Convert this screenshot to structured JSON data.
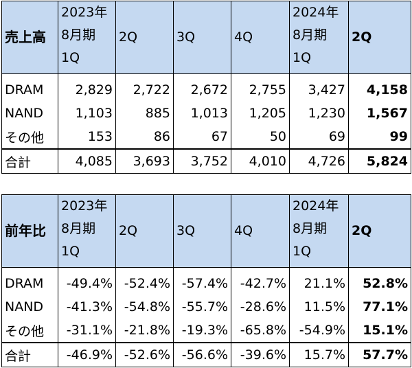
{
  "sales": {
    "corner": "売上高",
    "headers": [
      {
        "l1": "2023年",
        "l2": "8月期",
        "l3": "1Q"
      },
      {
        "l1": "",
        "l2": "2Q",
        "l3": ""
      },
      {
        "l1": "",
        "l2": "3Q",
        "l3": ""
      },
      {
        "l1": "",
        "l2": "4Q",
        "l3": ""
      },
      {
        "l1": "2024年",
        "l2": "8月期",
        "l3": "1Q"
      },
      {
        "l1": "",
        "l2": "2Q",
        "l3": ""
      }
    ],
    "rows": [
      {
        "label": "DRAM",
        "values": [
          "2,829",
          "2,722",
          "2,672",
          "2,755",
          "3,427",
          "4,158"
        ]
      },
      {
        "label": "NAND",
        "values": [
          "1,103",
          "885",
          "1,013",
          "1,205",
          "1,230",
          "1,567"
        ]
      },
      {
        "label": "その他",
        "values": [
          "153",
          "86",
          "67",
          "50",
          "69",
          "99"
        ]
      },
      {
        "label": "合計",
        "values": [
          "4,085",
          "3,693",
          "3,752",
          "4,010",
          "4,726",
          "5,824"
        ]
      }
    ]
  },
  "yoy": {
    "corner": "前年比",
    "headers": [
      {
        "l1": "2023年",
        "l2": "8月期",
        "l3": "1Q"
      },
      {
        "l1": "",
        "l2": "2Q",
        "l3": ""
      },
      {
        "l1": "",
        "l2": "3Q",
        "l3": ""
      },
      {
        "l1": "",
        "l2": "4Q",
        "l3": ""
      },
      {
        "l1": "2024年",
        "l2": "8月期",
        "l3": "1Q"
      },
      {
        "l1": "",
        "l2": "2Q",
        "l3": ""
      }
    ],
    "rows": [
      {
        "label": "DRAM",
        "values": [
          "-49.4%",
          "-52.4%",
          "-57.4%",
          "-42.7%",
          "21.1%",
          "52.8%"
        ]
      },
      {
        "label": "NAND",
        "values": [
          "-41.3%",
          "-54.8%",
          "-55.7%",
          "-28.6%",
          "11.5%",
          "77.1%"
        ]
      },
      {
        "label": "その他",
        "values": [
          "-31.1%",
          "-21.8%",
          "-19.3%",
          "-65.8%",
          "-54.9%",
          "15.1%"
        ]
      },
      {
        "label": "合計",
        "values": [
          "-46.9%",
          "-52.6%",
          "-56.6%",
          "-39.6%",
          "15.7%",
          "57.7%"
        ]
      }
    ]
  }
}
